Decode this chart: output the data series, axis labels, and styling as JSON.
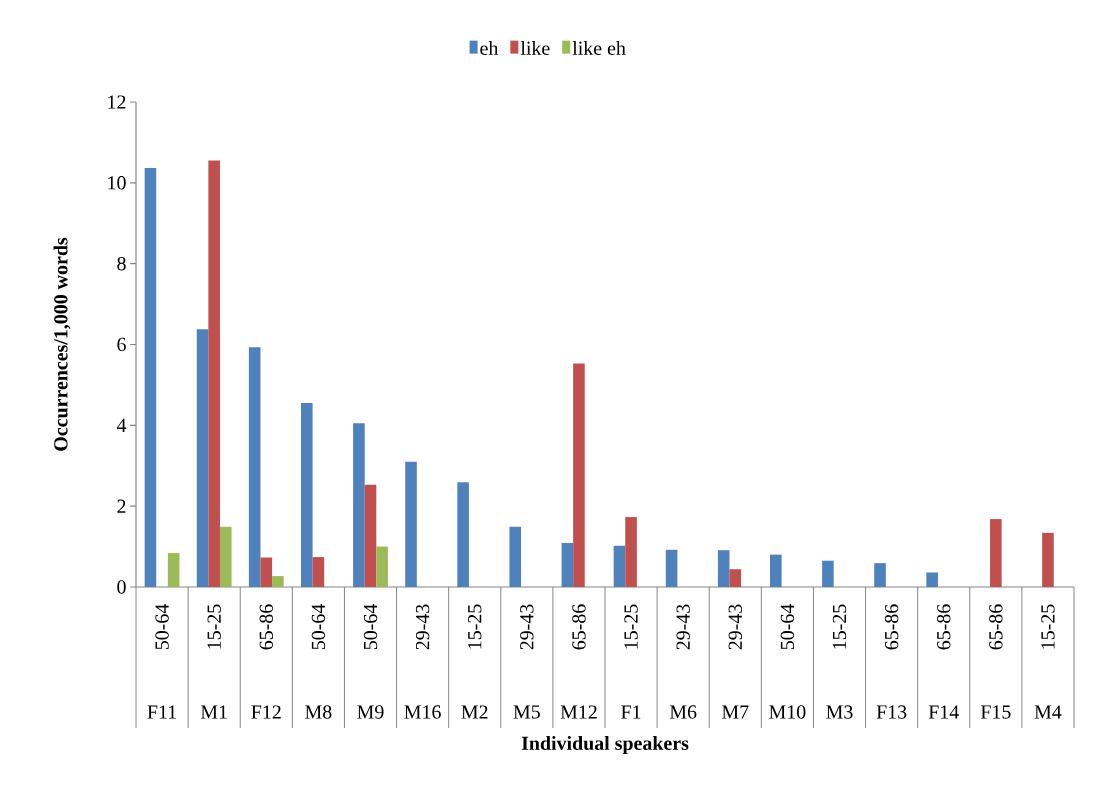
{
  "chart_data": {
    "type": "bar",
    "xlabel": "Individual speakers",
    "ylabel": "Occurrences/1,000 words",
    "categories": [
      "F11",
      "M1",
      "F12",
      "M8",
      "M9",
      "M16",
      "M2",
      "M5",
      "M12",
      "F1",
      "M6",
      "M7",
      "M10",
      "M3",
      "F13",
      "F14",
      "F15",
      "M4"
    ],
    "annotations": [
      "50-64",
      "15-25",
      "65-86",
      "50-64",
      "50-64",
      "29-43",
      "15-25",
      "29-43",
      "65-86",
      "15-25",
      "29-43",
      "29-43",
      "50-64",
      "15-25",
      "65-86",
      "65-86",
      "65-86",
      "15-25"
    ],
    "series": [
      {
        "name": "eh",
        "color": "#4f81bd",
        "values": [
          10.37,
          6.38,
          5.93,
          4.55,
          4.05,
          3.1,
          2.59,
          1.49,
          1.09,
          1.02,
          0.92,
          0.91,
          0.8,
          0.65,
          0.59,
          0.36,
          0,
          0
        ]
      },
      {
        "name": "like",
        "color": "#c0504d",
        "values": [
          0,
          10.55,
          0.73,
          0.74,
          2.53,
          0,
          0,
          0,
          5.53,
          1.73,
          0,
          0.44,
          0,
          0,
          0,
          0,
          1.68,
          1.34
        ]
      },
      {
        "name": "like eh",
        "color": "#9bbb59",
        "values": [
          0.84,
          1.49,
          0.27,
          0,
          1.0,
          0,
          0,
          0,
          0,
          0,
          0,
          0,
          0,
          0,
          0,
          0,
          0,
          0
        ]
      }
    ],
    "ylim": [
      0,
      12
    ],
    "yticks": [
      0,
      2,
      4,
      6,
      8,
      10,
      12
    ],
    "grid": false,
    "legend": "top"
  }
}
